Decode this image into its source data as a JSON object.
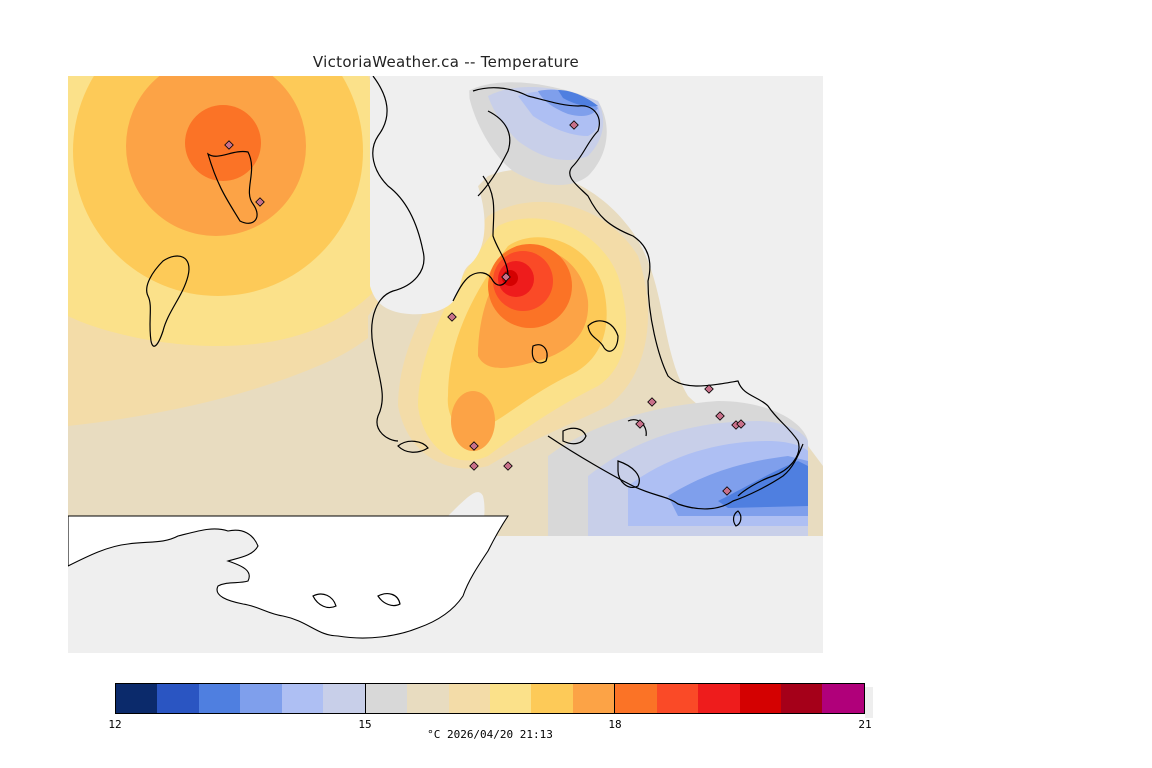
{
  "title": "VictoriaWeather.ca -- Temperature",
  "legend": {
    "colors": [
      "#0b2a6b",
      "#2a55c2",
      "#4f7fe0",
      "#7f9fec",
      "#aebff3",
      "#c8cfe9",
      "#d8d8d8",
      "#e8dcc0",
      "#f3dca8",
      "#fbe18a",
      "#fdca58",
      "#fca346",
      "#fb7326",
      "#fa4a27",
      "#ee1c1c",
      "#d40101",
      "#a50019",
      "#b0007a"
    ],
    "ticks": [
      {
        "label": "12",
        "value": 12
      },
      {
        "label": "15",
        "value": 15
      },
      {
        "label": "18",
        "value": 18
      },
      {
        "label": "21",
        "value": 21
      }
    ],
    "range": [
      12,
      21
    ],
    "caption": "°C  2026/04/20 21:13"
  },
  "map": {
    "background": "#efefef",
    "land_color": "#ffffff",
    "station_color": "#c8708a",
    "hotspot_max_temp": "~20",
    "coldspot_min_temp": "~13"
  }
}
